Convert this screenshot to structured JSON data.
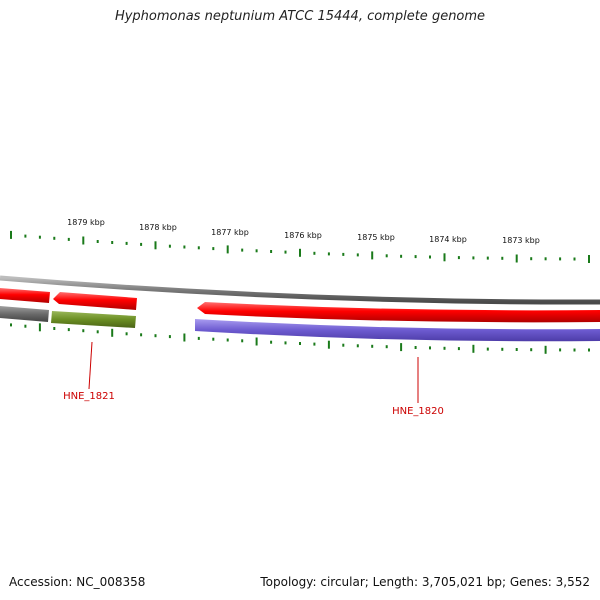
{
  "title": "Hyphomonas neptunium ATCC 15444, complete genome",
  "footer": {
    "accession": "Accession: NC_008358",
    "summary": "Topology: circular; Length: 3,705,021 bp; Genes: 3,552"
  },
  "ruler": {
    "labels": [
      "1879 kbp",
      "1878 kbp",
      "1877 kbp",
      "1876 kbp",
      "1875 kbp",
      "1874 kbp",
      "1873 kbp"
    ],
    "tick_color": "#1a7a1a"
  },
  "genes": [
    {
      "name": "HNE_1821",
      "color": "#6b8e23"
    },
    {
      "name": "HNE_1820",
      "color": "#7b68cc"
    }
  ],
  "colors": {
    "cds": "#ff0000",
    "backbone": "#808080",
    "label": "#cc0000"
  }
}
